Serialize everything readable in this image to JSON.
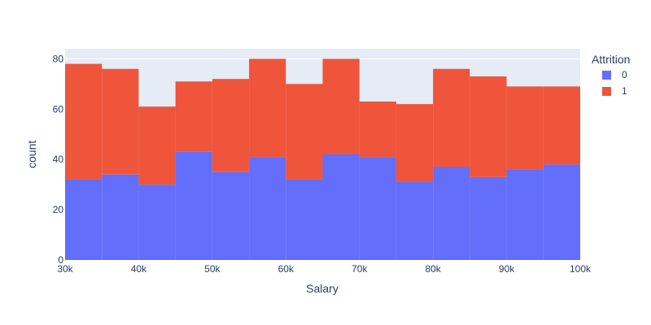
{
  "chart_data": {
    "type": "bar",
    "barmode": "stack",
    "histogram": true,
    "xlabel": "Salary",
    "ylabel": "count",
    "xlim": [
      30000,
      100000
    ],
    "ylim": [
      0,
      84
    ],
    "xticks": [
      {
        "value": 30000,
        "label": "30k"
      },
      {
        "value": 40000,
        "label": "40k"
      },
      {
        "value": 50000,
        "label": "50k"
      },
      {
        "value": 60000,
        "label": "60k"
      },
      {
        "value": 70000,
        "label": "70k"
      },
      {
        "value": 80000,
        "label": "80k"
      },
      {
        "value": 90000,
        "label": "90k"
      },
      {
        "value": 100000,
        "label": "100k"
      }
    ],
    "yticks": [
      {
        "value": 0,
        "label": "0"
      },
      {
        "value": 20,
        "label": "20"
      },
      {
        "value": 40,
        "label": "40"
      },
      {
        "value": 60,
        "label": "60"
      },
      {
        "value": 80,
        "label": "80"
      }
    ],
    "bin_edges": [
      30000,
      35000,
      40000,
      45000,
      50000,
      55000,
      60000,
      65000,
      70000,
      75000,
      80000,
      85000,
      90000,
      95000,
      100000
    ],
    "legend": {
      "title": "Attrition",
      "placement": "right"
    },
    "series": [
      {
        "name": "0",
        "color": "#636efa",
        "values": [
          32,
          34,
          30,
          43,
          35,
          41,
          32,
          42,
          41,
          31,
          37,
          33,
          36,
          38
        ]
      },
      {
        "name": "1",
        "color": "#ef553b",
        "values": [
          46,
          42,
          31,
          28,
          37,
          39,
          38,
          38,
          22,
          31,
          39,
          40,
          33,
          31
        ]
      }
    ],
    "grid": true,
    "plot_bgcolor": "#e5ecf6"
  }
}
